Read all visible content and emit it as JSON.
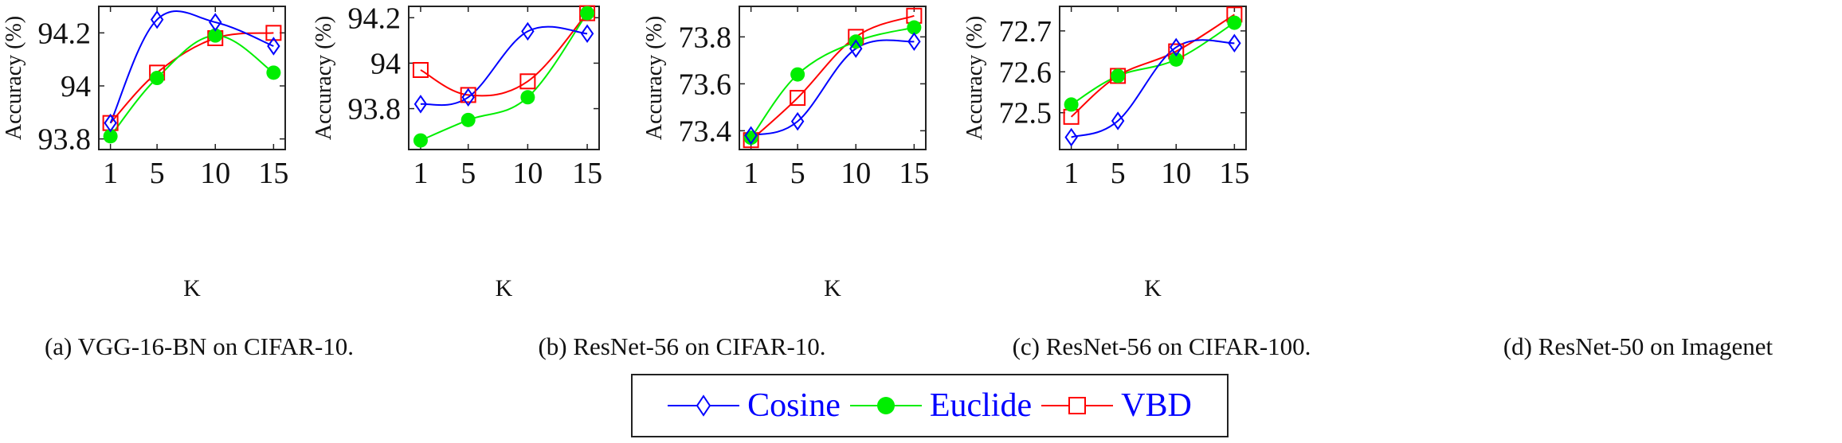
{
  "chart_data": [
    {
      "type": "line",
      "title": "(a) VGG-16-BN on CIFAR-10.",
      "xlabel": "K",
      "ylabel": "Accuracy (%)",
      "categories": [
        "1",
        "5",
        "10",
        "15"
      ],
      "yticks": [
        "93.8",
        "94",
        "94.2"
      ],
      "ytick_values": [
        93.8,
        94.0,
        94.2
      ],
      "ylim": [
        93.76,
        94.3
      ],
      "series": [
        {
          "name": "Cosine",
          "values": [
            93.86,
            94.25,
            94.24,
            94.15
          ]
        },
        {
          "name": "Euclide",
          "values": [
            93.81,
            94.03,
            94.19,
            94.05
          ]
        },
        {
          "name": "VBD",
          "values": [
            93.86,
            94.05,
            94.18,
            94.2
          ]
        }
      ]
    },
    {
      "type": "line",
      "title": "(b) ResNet-56 on CIFAR-10.",
      "xlabel": "K",
      "ylabel": "Accuracy (%)",
      "categories": [
        "1",
        "5",
        "10",
        "15"
      ],
      "yticks": [
        "93.8",
        "94",
        "94.2"
      ],
      "ytick_values": [
        93.8,
        94.0,
        94.2
      ],
      "ylim": [
        93.62,
        94.25
      ],
      "series": [
        {
          "name": "Cosine",
          "values": [
            93.82,
            93.85,
            94.14,
            94.13
          ]
        },
        {
          "name": "Euclide",
          "values": [
            93.66,
            93.75,
            93.85,
            94.22
          ]
        },
        {
          "name": "VBD",
          "values": [
            93.97,
            93.86,
            93.92,
            94.22
          ]
        }
      ]
    },
    {
      "type": "line",
      "title": "(c) ResNet-56 on CIFAR-100.",
      "xlabel": "K",
      "ylabel": "Accuracy (%)",
      "categories": [
        "1",
        "5",
        "10",
        "15"
      ],
      "yticks": [
        "73.4",
        "73.6",
        "73.8"
      ],
      "ytick_values": [
        73.4,
        73.6,
        73.8
      ],
      "ylim": [
        73.32,
        73.93
      ],
      "series": [
        {
          "name": "Cosine",
          "values": [
            73.38,
            73.44,
            73.75,
            73.78
          ]
        },
        {
          "name": "Euclide",
          "values": [
            73.37,
            73.64,
            73.78,
            73.84
          ]
        },
        {
          "name": "VBD",
          "values": [
            73.36,
            73.54,
            73.8,
            73.89
          ]
        }
      ]
    },
    {
      "type": "line",
      "title": "(d) ResNet-50 on Imagenet",
      "xlabel": "K",
      "ylabel": "Accuracy (%)",
      "categories": [
        "1",
        "5",
        "10",
        "15"
      ],
      "yticks": [
        "72.5",
        "72.6",
        "72.7"
      ],
      "ytick_values": [
        72.5,
        72.6,
        72.7
      ],
      "ylim": [
        72.41,
        72.76
      ],
      "series": [
        {
          "name": "Cosine",
          "values": [
            72.44,
            72.48,
            72.66,
            72.67
          ]
        },
        {
          "name": "Euclide",
          "values": [
            72.52,
            72.59,
            72.63,
            72.72
          ]
        },
        {
          "name": "VBD",
          "values": [
            72.49,
            72.59,
            72.65,
            72.74
          ]
        }
      ]
    }
  ],
  "legend": {
    "items": [
      {
        "label": "Cosine",
        "color": "#0000ff",
        "marker": "diamond-open"
      },
      {
        "label": "Euclide",
        "color": "#00ee00",
        "marker": "circle-filled"
      },
      {
        "label": "VBD",
        "color": "#ff0000",
        "marker": "square-open"
      }
    ]
  }
}
